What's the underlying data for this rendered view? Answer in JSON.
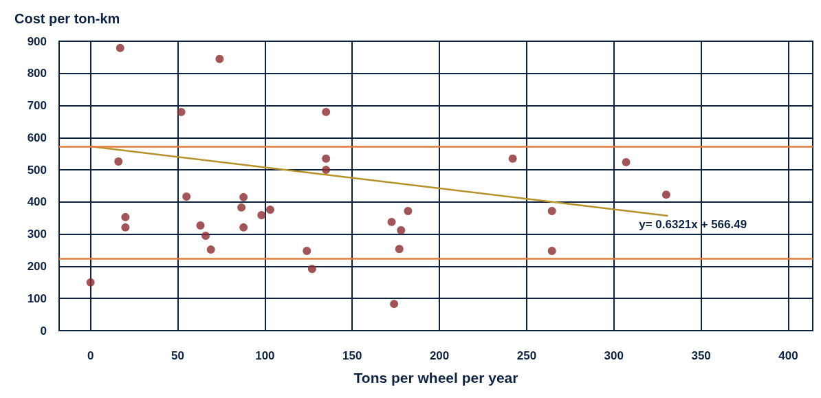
{
  "chart_data": {
    "type": "scatter",
    "title": "Cost per ton-km",
    "xlabel": "Tons per wheel per year",
    "xlim": [
      -18,
      414
    ],
    "xticks": [
      0,
      50,
      100,
      150,
      200,
      250,
      300,
      350,
      400
    ],
    "ylim": [
      0,
      900
    ],
    "yticks": [
      0,
      100,
      200,
      300,
      400,
      500,
      600,
      700,
      800,
      900
    ],
    "grid": true,
    "marker": "circle",
    "series": [
      {
        "color": "#8b2a2e",
        "x": [
          0,
          17,
          16,
          20,
          20,
          52,
          55,
          74,
          63,
          66,
          69,
          86.5,
          87.7,
          87.7,
          98,
          103,
          124,
          127,
          135,
          135,
          135,
          172.6,
          174,
          178,
          177,
          182,
          242,
          264.5,
          264.5,
          307,
          330
        ],
        "values": [
          150,
          879,
          526,
          353,
          321,
          680,
          417,
          845,
          327,
          295,
          252,
          383,
          415,
          321,
          359,
          376,
          248,
          192,
          680,
          535,
          500,
          338,
          83,
          312,
          254,
          372,
          535,
          372,
          248,
          524,
          423
        ]
      },
      {
        "type": "line",
        "color": "#b5922a",
        "marker": "none",
        "line_style": "solid",
        "x": [
          0,
          331
        ],
        "values": [
          573,
          357
        ]
      }
    ],
    "ref_lines": [
      {
        "axis": "y",
        "value": 573,
        "color": "#e07b39"
      },
      {
        "axis": "y",
        "value": 225,
        "color": "#e07b39"
      }
    ],
    "annotations": [
      "y= 0.6321x + 566.49"
    ]
  }
}
